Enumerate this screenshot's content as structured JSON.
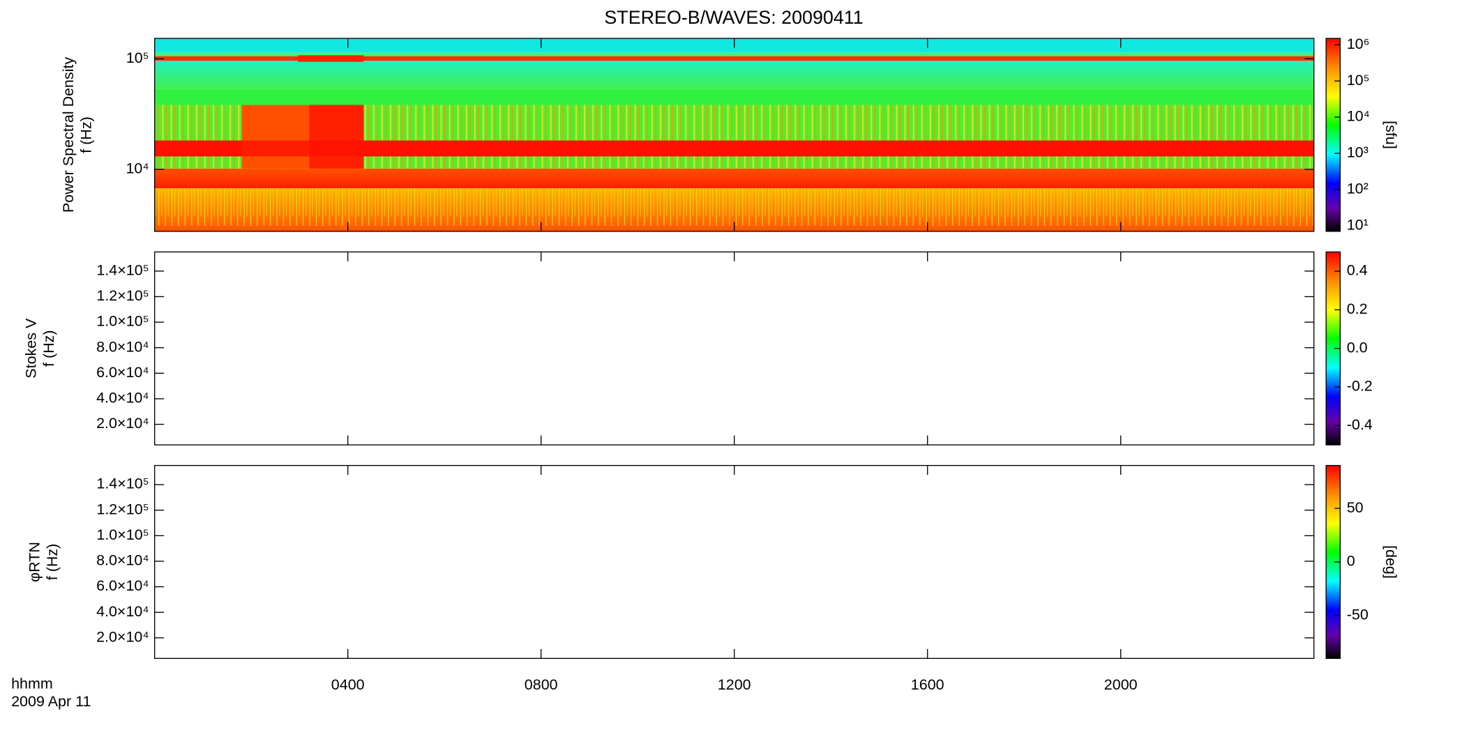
{
  "chart_data": [
    {
      "type": "heatmap",
      "title": "STEREO-B/WAVES: 20090411",
      "ylabel": [
        "Power Spectral Density",
        "f (Hz)"
      ],
      "ylog": true,
      "ylim": [
        2750,
        153000
      ],
      "yticks": [
        {
          "value": 10000,
          "label": "10⁴"
        },
        {
          "value": 100000,
          "label": "10⁵"
        }
      ],
      "xlim": [
        0,
        24
      ],
      "xticks": [
        4,
        8,
        12,
        16,
        20
      ],
      "colorbar": {
        "label": "[sfu]",
        "log": true,
        "lim": [
          7,
          1500000
        ],
        "ticks": [
          {
            "value": 10,
            "label": "10¹"
          },
          {
            "value": 100,
            "label": "10²"
          },
          {
            "value": 1000,
            "label": "10³"
          },
          {
            "value": 10000,
            "label": "10⁴"
          },
          {
            "value": 100000,
            "label": "10⁵"
          },
          {
            "value": 1000000,
            "label": "10⁶"
          }
        ]
      }
    },
    {
      "type": "heatmap",
      "ylabel": [
        "Stokes V",
        "f (Hz)"
      ],
      "ylog": false,
      "ylim": [
        3900,
        155000
      ],
      "yticks": [
        {
          "value": 20000,
          "label": "2.0×10⁴"
        },
        {
          "value": 40000,
          "label": "4.0×10⁴"
        },
        {
          "value": 60000,
          "label": "6.0×10⁴"
        },
        {
          "value": 80000,
          "label": "8.0×10⁴"
        },
        {
          "value": 100000,
          "label": "1.0×10⁵"
        },
        {
          "value": 120000,
          "label": "1.2×10⁵"
        },
        {
          "value": 140000,
          "label": "1.4×10⁵"
        }
      ],
      "xlim": [
        0,
        24
      ],
      "xticks": [
        4,
        8,
        12,
        16,
        20
      ],
      "colorbar": {
        "log": false,
        "lim": [
          -0.5,
          0.5
        ],
        "ticks": [
          -0.4,
          -0.2,
          {
            "value": 0,
            "label": "0.0"
          },
          0.2,
          0.4
        ]
      }
    },
    {
      "type": "heatmap",
      "ylabel": [
        "φRTN",
        "f (Hz)"
      ],
      "ylog": false,
      "ylim": [
        3900,
        155000
      ],
      "yticks": [
        {
          "value": 20000,
          "label": "2.0×10⁴"
        },
        {
          "value": 40000,
          "label": "4.0×10⁴"
        },
        {
          "value": 60000,
          "label": "6.0×10⁴"
        },
        {
          "value": 80000,
          "label": "8.0×10⁴"
        },
        {
          "value": 100000,
          "label": "1.0×10⁵"
        },
        {
          "value": 120000,
          "label": "1.2×10⁵"
        },
        {
          "value": 140000,
          "label": "1.4×10⁵"
        }
      ],
      "xlim": [
        0,
        24
      ],
      "xticks": [
        {
          "value": 4,
          "label": "0400"
        },
        {
          "value": 8,
          "label": "0800"
        },
        {
          "value": 12,
          "label": "1200"
        },
        {
          "value": 16,
          "label": "1600"
        },
        {
          "value": 20,
          "label": "2000"
        }
      ],
      "xlabel": "hhmm",
      "date": "2009 Apr 11",
      "colorbar": {
        "label": "[deg]",
        "log": false,
        "lim": [
          -90,
          90
        ],
        "ticks": [
          -50,
          0,
          50
        ]
      }
    }
  ]
}
